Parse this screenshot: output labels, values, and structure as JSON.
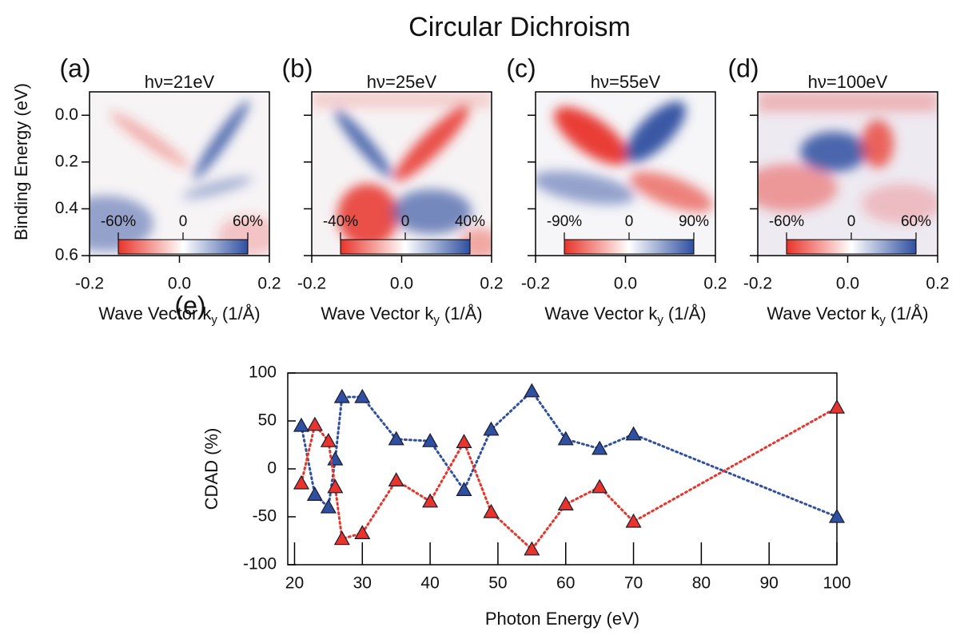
{
  "title": "Circular Dichroism",
  "chart_data": [
    {
      "type": "heatmap",
      "panel_label": "(a)",
      "title": "hν=21eV",
      "ylabel": "Binding Energy (eV)",
      "xlabel": "Wave Vector k",
      "xlabel_subscript": "y",
      "xlabel_unit": "(1/Å)",
      "xlim": [
        -0.2,
        0.2
      ],
      "xticks": [
        -0.2,
        {
          "value": 0,
          "label": "0.0"
        },
        0.2
      ],
      "ylim": [
        0.6,
        -0.1
      ],
      "yticks": [
        {
          "value": 0,
          "label": "0.0"
        },
        0.2,
        0.4,
        0.6
      ],
      "colorbar": {
        "range": [
          -60,
          60
        ],
        "ticks": [
          {
            "value": -60,
            "label": "-60%"
          },
          0,
          {
            "value": 60,
            "label": "60%"
          }
        ]
      }
    },
    {
      "type": "heatmap",
      "panel_label": "(b)",
      "title": "hν=25eV",
      "xlabel": "Wave Vector k",
      "xlabel_subscript": "y",
      "xlabel_unit": "(1/Å)",
      "xlim": [
        -0.2,
        0.2
      ],
      "xticks": [
        -0.2,
        {
          "value": 0,
          "label": "0.0"
        },
        0.2
      ],
      "ylim": [
        0.6,
        -0.1
      ],
      "yticks": [
        {
          "value": 0,
          "label": "0.0"
        },
        0.2,
        0.4,
        0.6
      ],
      "colorbar": {
        "range": [
          -40,
          40
        ],
        "ticks": [
          {
            "value": -40,
            "label": "-40%"
          },
          0,
          {
            "value": 40,
            "label": "40%"
          }
        ]
      }
    },
    {
      "type": "heatmap",
      "panel_label": "(c)",
      "title": "hν=55eV",
      "xlabel": "Wave Vector k",
      "xlabel_subscript": "y",
      "xlabel_unit": "(1/Å)",
      "xlim": [
        -0.2,
        0.2
      ],
      "xticks": [
        -0.2,
        {
          "value": 0,
          "label": "0.0"
        },
        0.2
      ],
      "ylim": [
        0.6,
        -0.1
      ],
      "yticks": [
        {
          "value": 0,
          "label": "0.0"
        },
        0.2,
        0.4,
        0.6
      ],
      "colorbar": {
        "range": [
          -90,
          90
        ],
        "ticks": [
          {
            "value": -90,
            "label": "-90%"
          },
          0,
          {
            "value": 90,
            "label": "90%"
          }
        ]
      }
    },
    {
      "type": "heatmap",
      "panel_label": "(d)",
      "title": "hν=100eV",
      "xlabel": "Wave Vector k",
      "xlabel_subscript": "y",
      "xlabel_unit": "(1/Å)",
      "xlim": [
        -0.2,
        0.2
      ],
      "xticks": [
        -0.2,
        {
          "value": 0,
          "label": "0.0"
        },
        0.2
      ],
      "ylim": [
        0.6,
        -0.1
      ],
      "yticks": [
        {
          "value": 0,
          "label": "0.0"
        },
        0.2,
        0.4,
        0.6
      ],
      "colorbar": {
        "range": [
          -60,
          60
        ],
        "ticks": [
          {
            "value": -60,
            "label": "-60%"
          },
          0,
          {
            "value": 60,
            "label": "60%"
          }
        ]
      }
    },
    {
      "type": "line",
      "panel_label": "(e)",
      "xlabel": "Photon Energy (eV)",
      "ylabel": "CDAD (%)",
      "x": [
        21,
        23,
        25,
        26,
        27,
        30,
        35,
        40,
        45,
        49,
        55,
        60,
        65,
        70,
        100
      ],
      "series": [
        {
          "color": "#2f4fa0",
          "values": [
            45,
            -27,
            -40,
            10,
            75,
            75,
            31,
            29,
            -22,
            41,
            81,
            31,
            21,
            36,
            -50
          ]
        },
        {
          "color": "#e8342a",
          "values": [
            -15,
            46,
            29,
            -19,
            -73,
            -67,
            -12,
            -34,
            28,
            -45,
            -84,
            -37,
            -19,
            -55,
            64
          ]
        }
      ],
      "xlim": [
        19,
        100
      ],
      "xticks": [
        20,
        30,
        40,
        50,
        60,
        70,
        80,
        90,
        100
      ],
      "ylim": [
        -100,
        100
      ],
      "yticks": [
        -100,
        -50,
        0,
        50,
        100
      ]
    }
  ]
}
